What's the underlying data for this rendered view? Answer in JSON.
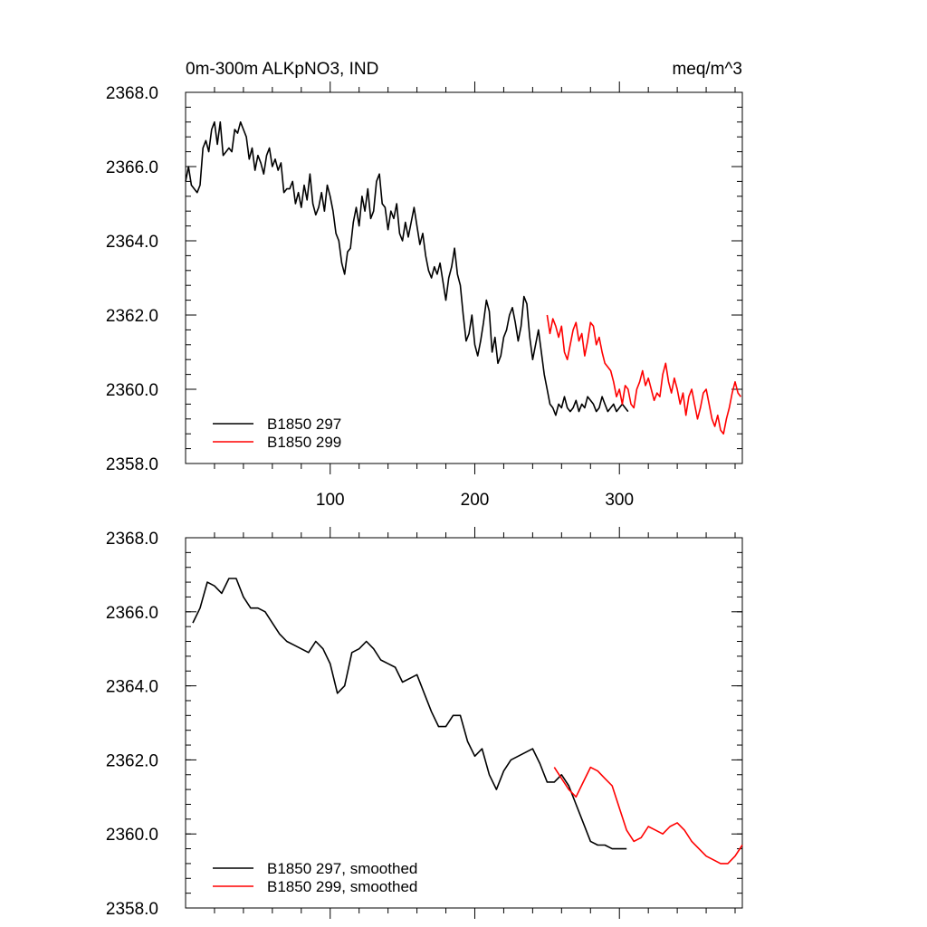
{
  "header": {
    "title": "0m-300m ALKpNO3, IND",
    "units": "meq/m^3"
  },
  "colors": {
    "series_297": "#000000",
    "series_299": "#ff0000"
  },
  "chart_data": [
    {
      "type": "line",
      "panel": "top",
      "title": "0m-300m ALKpNO3, IND",
      "units": "meq/m^3",
      "xlim": [
        0,
        385
      ],
      "ylim": [
        2358.0,
        2368.0
      ],
      "xticks": [
        100,
        200,
        300
      ],
      "xtick_labels": [
        "100",
        "200",
        "300"
      ],
      "yticks": [
        2358.0,
        2360.0,
        2362.0,
        2364.0,
        2366.0,
        2368.0
      ],
      "ytick_labels": [
        "2358.0",
        "2360.0",
        "2362.0",
        "2364.0",
        "2366.0",
        "2368.0"
      ],
      "legend": [
        "B1850 297",
        "B1850 299"
      ],
      "legend_position": "bottom-left",
      "series": [
        {
          "name": "B1850 297",
          "color": "#000000",
          "x": [
            0,
            2,
            4,
            6,
            8,
            10,
            12,
            14,
            16,
            18,
            20,
            22,
            24,
            26,
            28,
            30,
            32,
            34,
            36,
            38,
            40,
            42,
            44,
            46,
            48,
            50,
            52,
            54,
            56,
            58,
            60,
            62,
            64,
            66,
            68,
            70,
            72,
            74,
            76,
            78,
            80,
            82,
            84,
            86,
            88,
            90,
            92,
            94,
            96,
            98,
            100,
            102,
            104,
            106,
            108,
            110,
            112,
            114,
            116,
            118,
            120,
            122,
            124,
            126,
            128,
            130,
            132,
            134,
            136,
            138,
            140,
            142,
            144,
            146,
            148,
            150,
            152,
            154,
            156,
            158,
            160,
            162,
            164,
            166,
            168,
            170,
            172,
            174,
            176,
            178,
            180,
            182,
            184,
            186,
            188,
            190,
            192,
            194,
            196,
            198,
            200,
            202,
            204,
            206,
            208,
            210,
            212,
            214,
            216,
            218,
            220,
            222,
            224,
            226,
            228,
            230,
            232,
            234,
            236,
            238,
            240,
            242,
            244,
            246,
            248,
            250,
            252,
            254,
            256,
            258,
            260,
            262,
            264,
            266,
            268,
            270,
            272,
            274,
            276,
            278,
            280,
            282,
            284,
            286,
            288,
            290,
            292,
            294,
            296,
            298,
            300,
            302,
            304,
            306
          ],
          "y": [
            2365.6,
            2366.0,
            2365.5,
            2365.4,
            2365.3,
            2365.5,
            2366.5,
            2366.7,
            2366.4,
            2367.0,
            2367.2,
            2366.6,
            2367.2,
            2366.3,
            2366.4,
            2366.5,
            2366.4,
            2367.0,
            2366.9,
            2367.2,
            2367.0,
            2366.8,
            2366.2,
            2366.5,
            2365.9,
            2366.3,
            2366.1,
            2365.8,
            2366.3,
            2366.5,
            2366.0,
            2366.2,
            2365.9,
            2366.1,
            2365.3,
            2365.4,
            2365.4,
            2365.6,
            2365.0,
            2365.3,
            2364.9,
            2365.5,
            2365.1,
            2365.8,
            2365.0,
            2364.7,
            2364.9,
            2365.3,
            2364.8,
            2365.5,
            2365.2,
            2364.8,
            2364.2,
            2364.0,
            2363.4,
            2363.1,
            2363.7,
            2363.8,
            2364.5,
            2364.9,
            2364.4,
            2365.2,
            2364.8,
            2365.4,
            2364.6,
            2364.8,
            2365.6,
            2365.8,
            2365.0,
            2364.9,
            2364.3,
            2364.8,
            2364.6,
            2365.0,
            2364.2,
            2364.0,
            2364.5,
            2364.1,
            2364.5,
            2364.9,
            2364.4,
            2363.9,
            2364.2,
            2363.6,
            2363.2,
            2363.0,
            2363.3,
            2363.1,
            2363.4,
            2362.9,
            2362.4,
            2363.0,
            2363.3,
            2363.8,
            2363.1,
            2362.8,
            2362.0,
            2361.3,
            2361.5,
            2362.0,
            2361.2,
            2360.9,
            2361.3,
            2361.8,
            2362.4,
            2362.1,
            2361.0,
            2361.4,
            2360.7,
            2360.9,
            2361.4,
            2361.6,
            2362.0,
            2362.2,
            2361.8,
            2361.3,
            2361.7,
            2362.5,
            2362.3,
            2361.4,
            2360.8,
            2361.2,
            2361.6,
            2361.0,
            2360.4,
            2360.0,
            2359.6,
            2359.5,
            2359.3,
            2359.6,
            2359.5,
            2359.8,
            2359.5,
            2359.4,
            2359.5,
            2359.7,
            2359.4,
            2359.6,
            2359.5,
            2359.8,
            2359.7,
            2359.6,
            2359.4,
            2359.5,
            2359.8,
            2359.6,
            2359.4,
            2359.5,
            2359.6,
            2359.4,
            2359.5,
            2359.6,
            2359.5,
            2359.4
          ]
        },
        {
          "name": "B1850 299",
          "color": "#ff0000",
          "x": [
            250,
            252,
            254,
            256,
            258,
            260,
            262,
            264,
            266,
            268,
            270,
            272,
            274,
            276,
            278,
            280,
            282,
            284,
            286,
            288,
            290,
            292,
            294,
            296,
            298,
            300,
            302,
            304,
            306,
            308,
            310,
            312,
            314,
            316,
            318,
            320,
            322,
            324,
            326,
            328,
            330,
            332,
            334,
            336,
            338,
            340,
            342,
            344,
            346,
            348,
            350,
            352,
            354,
            356,
            358,
            360,
            362,
            364,
            366,
            368,
            370,
            372,
            374,
            376,
            378,
            380,
            382,
            384
          ],
          "y": [
            2362.0,
            2361.5,
            2361.9,
            2361.7,
            2361.4,
            2361.7,
            2361.0,
            2360.8,
            2361.2,
            2361.6,
            2361.8,
            2361.3,
            2361.5,
            2360.9,
            2361.3,
            2361.8,
            2361.7,
            2361.2,
            2361.4,
            2361.0,
            2360.7,
            2360.6,
            2360.5,
            2360.2,
            2359.8,
            2360.0,
            2359.6,
            2360.1,
            2360.0,
            2359.6,
            2359.5,
            2360.0,
            2360.2,
            2360.5,
            2360.1,
            2360.3,
            2360.0,
            2359.7,
            2359.9,
            2359.8,
            2360.4,
            2360.7,
            2360.2,
            2359.9,
            2360.3,
            2360.0,
            2359.6,
            2359.9,
            2359.3,
            2359.8,
            2360.0,
            2359.6,
            2359.2,
            2359.5,
            2359.9,
            2360.0,
            2359.6,
            2359.2,
            2359.0,
            2359.3,
            2358.9,
            2358.8,
            2359.2,
            2359.5,
            2359.9,
            2360.2,
            2359.9,
            2359.8
          ]
        }
      ]
    },
    {
      "type": "line",
      "panel": "bottom",
      "xlim": [
        0,
        385
      ],
      "ylim": [
        2358.0,
        2368.0
      ],
      "xticks": [
        100,
        200,
        300
      ],
      "yticks": [
        2358.0,
        2360.0,
        2362.0,
        2364.0,
        2366.0,
        2368.0
      ],
      "ytick_labels": [
        "2358.0",
        "2360.0",
        "2362.0",
        "2364.0",
        "2366.0",
        "2368.0"
      ],
      "legend": [
        "B1850 297, smoothed",
        "B1850 299, smoothed"
      ],
      "legend_position": "bottom-left",
      "series": [
        {
          "name": "B1850 297, smoothed",
          "color": "#000000",
          "x": [
            5,
            10,
            15,
            20,
            25,
            30,
            35,
            40,
            45,
            50,
            55,
            60,
            65,
            70,
            75,
            80,
            85,
            90,
            95,
            100,
            105,
            110,
            115,
            120,
            125,
            130,
            135,
            140,
            145,
            150,
            155,
            160,
            165,
            170,
            175,
            180,
            185,
            190,
            195,
            200,
            205,
            210,
            215,
            220,
            225,
            230,
            235,
            240,
            245,
            250,
            255,
            260,
            265,
            270,
            275,
            280,
            285,
            290,
            295,
            300,
            305
          ],
          "y": [
            2365.7,
            2366.1,
            2366.8,
            2366.7,
            2366.5,
            2366.9,
            2366.9,
            2366.4,
            2366.1,
            2366.1,
            2366.0,
            2365.7,
            2365.4,
            2365.2,
            2365.1,
            2365.0,
            2364.9,
            2365.2,
            2365.0,
            2364.6,
            2363.8,
            2364.0,
            2364.9,
            2365.0,
            2365.2,
            2365.0,
            2364.7,
            2364.6,
            2364.5,
            2364.1,
            2364.2,
            2364.3,
            2363.8,
            2363.3,
            2362.9,
            2362.9,
            2363.2,
            2363.2,
            2362.5,
            2362.1,
            2362.3,
            2361.6,
            2361.2,
            2361.7,
            2362.0,
            2362.1,
            2362.2,
            2362.3,
            2361.9,
            2361.4,
            2361.4,
            2361.6,
            2361.3,
            2360.8,
            2360.3,
            2359.8,
            2359.7,
            2359.7,
            2359.6,
            2359.6,
            2359.6
          ]
        },
        {
          "name": "B1850 299, smoothed",
          "color": "#ff0000",
          "x": [
            255,
            260,
            265,
            270,
            275,
            280,
            285,
            290,
            295,
            300,
            305,
            310,
            315,
            320,
            325,
            330,
            335,
            340,
            345,
            350,
            355,
            360,
            365,
            370,
            375,
            380,
            385
          ],
          "y": [
            2361.8,
            2361.5,
            2361.2,
            2361.0,
            2361.4,
            2361.8,
            2361.7,
            2361.5,
            2361.3,
            2360.7,
            2360.1,
            2359.8,
            2359.9,
            2360.2,
            2360.1,
            2360.0,
            2360.2,
            2360.3,
            2360.1,
            2359.8,
            2359.6,
            2359.4,
            2359.3,
            2359.2,
            2359.2,
            2359.4,
            2359.7
          ]
        }
      ]
    }
  ]
}
